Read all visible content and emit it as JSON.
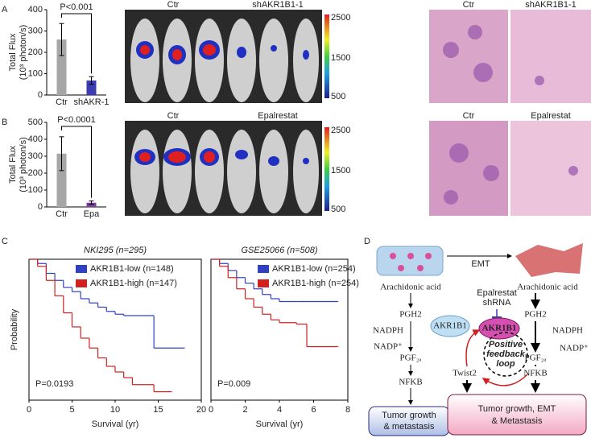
{
  "panel_labels": [
    "A",
    "B",
    "C",
    "D"
  ],
  "chart_data": [
    {
      "type": "bar",
      "ylabel": [
        "Total Flux",
        "(10³ photon/s)"
      ],
      "categories": [
        "Ctr",
        "shAKR-1"
      ],
      "values": [
        260,
        68
      ],
      "errors": [
        75,
        18
      ],
      "colors": [
        "#a6a6a6",
        "#3b3bb3"
      ],
      "category_label_colors": [
        "#000000",
        "#3b3bb3"
      ],
      "ylim": [
        0,
        400
      ],
      "yticks": [
        0,
        100,
        200,
        300,
        400
      ],
      "annotation": "P<0.001"
    },
    {
      "type": "bar",
      "ylabel": [
        "Total Flux",
        "(10³ photon/s)"
      ],
      "categories": [
        "Ctr",
        "Epa"
      ],
      "values": [
        315,
        25
      ],
      "errors": [
        100,
        10
      ],
      "colors": [
        "#a6a6a6",
        "#7f3f9f"
      ],
      "category_label_colors": [
        "#000000",
        "#7f3f9f"
      ],
      "ylim": [
        0,
        500
      ],
      "yticks": [
        0,
        100,
        200,
        300,
        400,
        500
      ],
      "annotation": "P<0.0001"
    },
    {
      "type": "line",
      "title": "NKI295 (n=295)",
      "xlabel": "Survival (yr)",
      "ylabel": "Probability",
      "xlim": [
        0,
        20
      ],
      "xticks": [
        0,
        5,
        10,
        15,
        20
      ],
      "ylim": [
        0,
        1
      ],
      "annotation": "P=0.0193",
      "series": [
        {
          "name": "AKR1B1-low (n=148)",
          "color": "#3040c0",
          "x": [
            0,
            1,
            2,
            3,
            4,
            5,
            6,
            7,
            8,
            9,
            10,
            11,
            14.5,
            18
          ],
          "values": [
            1,
            0.97,
            0.9,
            0.85,
            0.8,
            0.77,
            0.72,
            0.69,
            0.66,
            0.63,
            0.61,
            0.6,
            0.37,
            0.37
          ]
        },
        {
          "name": "AKR1B1-high (n=147)",
          "color": "#d02020",
          "x": [
            0,
            1,
            2,
            3,
            4,
            5,
            6,
            7,
            8,
            9,
            10,
            11,
            12,
            14.5,
            16.5
          ],
          "values": [
            1,
            0.95,
            0.85,
            0.74,
            0.62,
            0.52,
            0.44,
            0.37,
            0.3,
            0.24,
            0.2,
            0.16,
            0.11,
            0.06,
            0.06
          ]
        }
      ]
    },
    {
      "type": "line",
      "title": "GSE25066 (n=508)",
      "xlabel": "Survival (yr)",
      "xlim": [
        0,
        8
      ],
      "xticks": [
        0,
        2,
        4,
        6,
        8
      ],
      "ylim": [
        0,
        1
      ],
      "annotation": "P=0.009",
      "series": [
        {
          "name": "AKR1B1-low (n=254)",
          "color": "#3040c0",
          "x": [
            0,
            0.5,
            1,
            1.5,
            2,
            2.5,
            3,
            3.5,
            4,
            5,
            7.4
          ],
          "values": [
            1,
            0.97,
            0.92,
            0.87,
            0.83,
            0.79,
            0.75,
            0.72,
            0.7,
            0.7,
            0.7
          ]
        },
        {
          "name": "AKR1B1-high (n=254)",
          "color": "#d02020",
          "x": [
            0,
            0.5,
            1,
            1.5,
            2,
            2.5,
            3,
            3.5,
            4,
            5,
            5.6,
            7.4
          ],
          "values": [
            1,
            0.95,
            0.87,
            0.79,
            0.72,
            0.66,
            0.61,
            0.57,
            0.55,
            0.54,
            0.38,
            0.38
          ]
        }
      ]
    }
  ],
  "images": {
    "a_imaging": [
      "Ctr",
      "shAKR1B1-1"
    ],
    "a_histology": [
      "Ctr",
      "shAKR1B1-1"
    ],
    "b_imaging": [
      "Ctr",
      "Epalrestat"
    ],
    "b_histology": [
      "Ctr",
      "Epalrestat"
    ],
    "colorbar": [
      "2500",
      "1500",
      "500"
    ]
  },
  "diagram": {
    "emt": "EMT",
    "left": {
      "substrate": "Arachidonic acid",
      "pgh2": "PGH2",
      "nadph": "NADPH",
      "enzyme": "AKR1B1",
      "nadp": "NADP⁺",
      "pgf": "PGF₂ₐ",
      "nfkb": "NFKB",
      "outcome": [
        "Tumor growth",
        "& metastasis"
      ]
    },
    "right": {
      "substrate": "Arachidonic acid",
      "pgh2": "PGH2",
      "nadph": "NADPH",
      "enzyme": "AKR1B1",
      "nadp": "NADP⁺",
      "pgf": "PGF₂ₐ",
      "nfkb": "NFKB",
      "inhibitors": [
        "Epalrestat",
        "shRNA"
      ],
      "loop": [
        "Positive",
        "feedback",
        "loop"
      ],
      "twist": "Twist2",
      "outcome": [
        "Tumor growth, EMT",
        "& Metastasis"
      ]
    }
  }
}
